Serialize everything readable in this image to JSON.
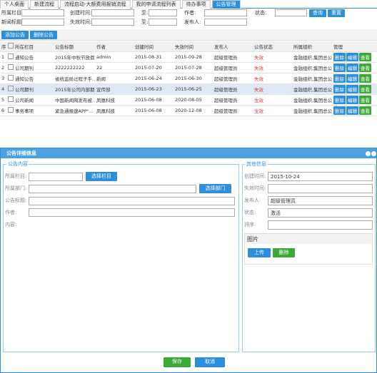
{
  "tabs": [
    "个人桌面",
    "新建流程",
    "流程启动-大额费用报销流程",
    "我的申请流程列表",
    "待办事项",
    "公告管理"
  ],
  "filters": {
    "category": "所属栏目:",
    "created": "创建时间:",
    "to1": "至:",
    "author": "作者:",
    "status": "状态:",
    "title": "新闻标题:",
    "expire": "失效时间:",
    "to2": "至:",
    "publisher": "发布人:",
    "search": "查询",
    "reset": "重置"
  },
  "toolbar": {
    "add": "添加公告",
    "delete": "删除公告"
  },
  "table": {
    "headers": [
      "序",
      "所在栏目",
      "公告标题",
      "作者",
      "创建时间",
      "失效时间",
      "发布人",
      "公告状态",
      "所属组织",
      "管理"
    ],
    "rows": [
      [
        "1",
        "通知公告",
        "2015年中秋节放假...",
        "admin",
        "2015-08-31",
        "2015-09-28",
        "超级管理员",
        "失效",
        "金融组织,集团总公..."
      ],
      [
        "2",
        "公司期刊",
        "2222222222",
        "22",
        "2015-07-20",
        "2015-07-28",
        "超级管理员",
        "失效",
        "金融组织,集团总公..."
      ],
      [
        "3",
        "通知公告",
        "省统监局过程子手...",
        "新闻",
        "2015-06-24",
        "2015-06-30",
        "超级管理员",
        "失效",
        "金融组织,集团总公..."
      ],
      [
        "4",
        "公司期刊",
        "2015年公司内部期...",
        "宣传部",
        "2015-06-23",
        "2015-06-25",
        "超级管理员",
        "失效",
        "金融组织,集团总公..."
      ],
      [
        "5",
        "公司新闻",
        "中国新闻网发布被...",
        "凤凰科技",
        "2015-06-08",
        "2020-08-05",
        "超级管理员",
        "生效",
        "金融组织,集团总公..."
      ],
      [
        "6",
        "事务事项",
        "紧急通报速APP\"...",
        "凤凰科技",
        "2015-06-08",
        "2020-12-08",
        "超级管理员",
        "生效",
        "金融组织,集团总公..."
      ]
    ],
    "actions": [
      "删除",
      "编辑",
      "查看"
    ]
  },
  "dialog": {
    "title": "公告详细信息",
    "content": {
      "legend": "公告内容",
      "category": "所属栏目:",
      "choose_category": "选择栏目",
      "department": "所属部门:",
      "choose_department": "选择部门",
      "title": "公告标题:",
      "author": "作者:",
      "body": "内容:"
    },
    "other": {
      "legend": "其他信息",
      "created": "创建时间:",
      "created_value": "2015-10-24",
      "expire": "失效时间:",
      "publisher": "发布人:",
      "publisher_value": "超级管理员",
      "status": "状态:",
      "status_value": "激活",
      "order": "排序:",
      "images": "图片",
      "upload": "上传",
      "delete": "删除"
    },
    "save": "保存",
    "cancel": "取消"
  }
}
